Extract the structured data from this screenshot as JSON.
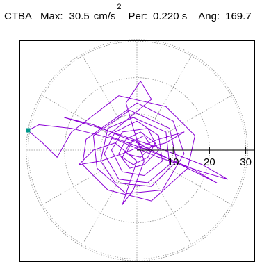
{
  "header": {
    "station": "CTBA",
    "max_label": "Max:",
    "max_value": "30.5",
    "max_unit": "cm/s",
    "max_unit_exponent": "2",
    "per_label": "Per:",
    "per_value": "0.220 s",
    "ang_label": "Ang:",
    "ang_value": "169.7"
  },
  "colors": {
    "trace": "#8b00d6",
    "marker": "#00998c",
    "grid": "#8a8a8a",
    "frame": "#000000",
    "axis": "#000000"
  },
  "chart_data": {
    "type": "polar-particle-motion",
    "radial_ticks": [
      "10",
      "20",
      "30"
    ],
    "radial_tick_values": [
      10,
      20,
      30
    ],
    "radial_max": 30.5,
    "angular_gridline_step_deg": 30,
    "grid": true,
    "max_direction_deg": 169.7,
    "max_amplitude": 30.5,
    "trace_sample": [
      [
        0,
        0
      ],
      [
        2,
        1
      ],
      [
        -1,
        3
      ],
      [
        -3,
        -1
      ],
      [
        1,
        -2
      ],
      [
        4,
        1
      ],
      [
        2,
        4
      ],
      [
        -2,
        2
      ],
      [
        -4,
        -2
      ],
      [
        -1,
        -4
      ],
      [
        3,
        -2
      ],
      [
        5,
        2
      ],
      [
        1,
        5
      ],
      [
        -3,
        3
      ],
      [
        -5,
        -1
      ],
      [
        -2,
        -5
      ],
      [
        2,
        -4
      ],
      [
        6,
        0
      ],
      [
        3,
        6
      ],
      [
        -4,
        5
      ],
      [
        -7,
        0
      ],
      [
        -4,
        -6
      ],
      [
        2,
        -7
      ],
      [
        7,
        -3
      ],
      [
        6,
        4
      ],
      [
        0,
        8
      ],
      [
        -6,
        5
      ],
      [
        -9,
        -1
      ],
      [
        -5,
        -8
      ],
      [
        3,
        -9
      ],
      [
        9,
        -4
      ],
      [
        8,
        5
      ],
      [
        -1,
        9
      ],
      [
        -8,
        6
      ],
      [
        -10,
        -3
      ],
      [
        -6,
        -9
      ],
      [
        4,
        -10
      ],
      [
        11,
        -3
      ],
      [
        9,
        6
      ],
      [
        -2,
        11
      ],
      [
        -12,
        4
      ],
      [
        -11,
        -5
      ],
      [
        -3,
        -12
      ],
      [
        7,
        -11
      ],
      [
        13,
        -1
      ],
      [
        10,
        8
      ],
      [
        0,
        13
      ],
      [
        -14,
        3
      ],
      [
        -15,
        -4
      ],
      [
        -8,
        -11
      ],
      [
        4,
        -14
      ],
      [
        14,
        -5
      ],
      [
        16,
        4
      ],
      [
        8,
        12
      ],
      [
        -5,
        15
      ],
      [
        -18,
        5
      ],
      [
        -22,
        -2
      ],
      [
        -26,
        2
      ],
      [
        -30.0,
        5.4
      ],
      [
        -27,
        7
      ],
      [
        -18,
        6
      ],
      [
        -6,
        3
      ],
      [
        6,
        -2
      ],
      [
        18,
        -6
      ],
      [
        25,
        -8
      ],
      [
        18,
        -4
      ],
      [
        5,
        1
      ],
      [
        -10,
        6
      ],
      [
        -20,
        9
      ],
      [
        -12,
        7
      ],
      [
        0,
        2
      ],
      [
        12,
        -4
      ],
      [
        22,
        -9
      ],
      [
        15,
        -5
      ],
      [
        3,
        0
      ],
      [
        -8,
        4
      ],
      [
        -2,
        9
      ],
      [
        4,
        14
      ],
      [
        1,
        19
      ],
      [
        -3,
        13
      ],
      [
        -1,
        6
      ],
      [
        2,
        -3
      ],
      [
        -1,
        -11
      ],
      [
        -4,
        -15
      ],
      [
        -2,
        -9
      ],
      [
        0,
        -3
      ],
      [
        -6,
        2
      ],
      [
        -12,
        0
      ],
      [
        -16,
        -4
      ],
      [
        -10,
        -3
      ],
      [
        -4,
        -1
      ],
      [
        6,
        3
      ],
      [
        13,
        5
      ],
      [
        8,
        2
      ],
      [
        0,
        0
      ]
    ]
  }
}
